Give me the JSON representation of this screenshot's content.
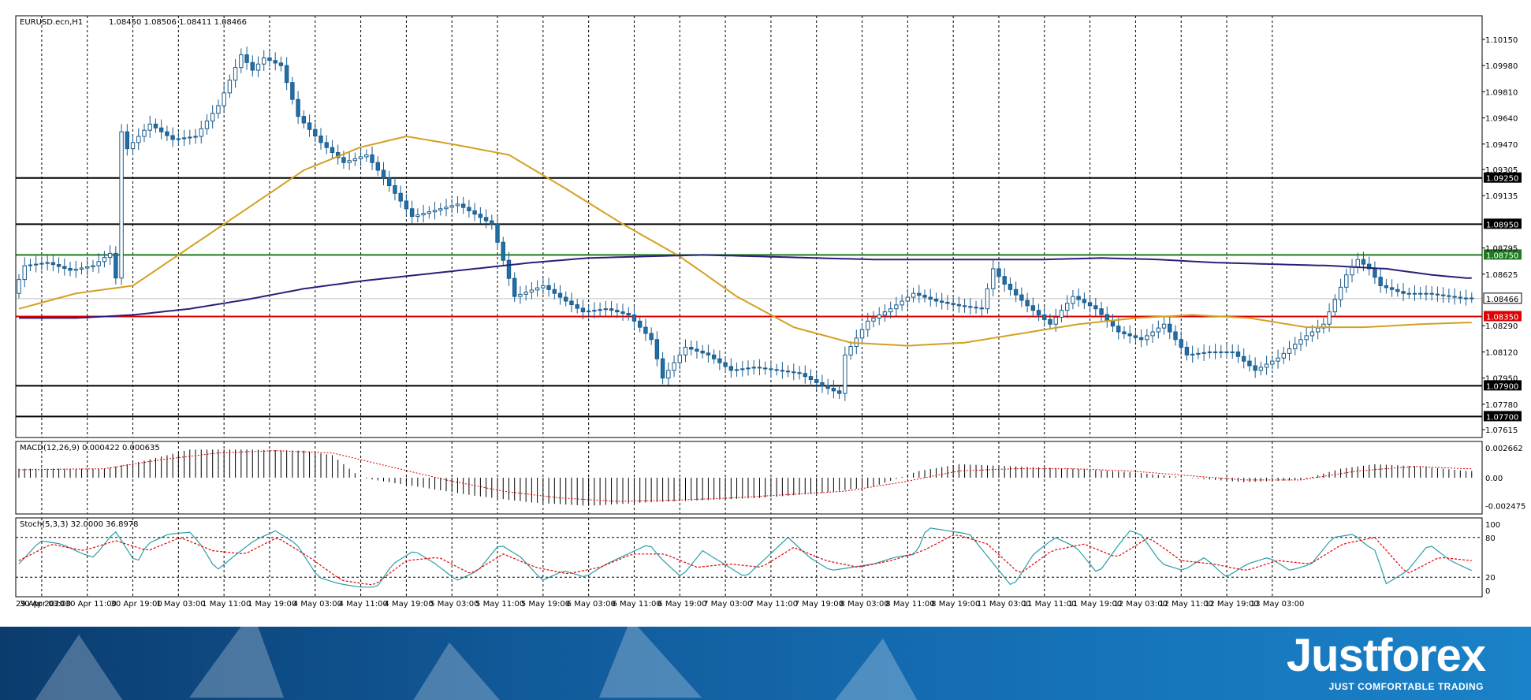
{
  "chart_data": [
    {
      "type": "candlestick",
      "title": "EURUSD.ecn,H1",
      "ohlc_header": "1.08450 1.08506 1.08411 1.08466",
      "ylim": [
        1.07615,
        1.1015
      ],
      "y_ticks": [
        "1.10150",
        "1.09980",
        "1.09810",
        "1.09640",
        "1.09470",
        "1.09305",
        "1.09135",
        "1.08795",
        "1.08625",
        "1.08290",
        "1.08120",
        "1.07950",
        "1.07780",
        "1.07615"
      ],
      "x_ticks": [
        "29 Apr 2020",
        "30 Apr 03:00",
        "30 Apr 11:00",
        "30 Apr 19:00",
        "1 May 03:00",
        "1 May 11:00",
        "1 May 19:00",
        "4 May 03:00",
        "4 May 11:00",
        "4 May 19:00",
        "5 May 03:00",
        "5 May 11:00",
        "5 May 19:00",
        "6 May 03:00",
        "6 May 11:00",
        "6 May 19:00",
        "7 May 03:00",
        "7 May 11:00",
        "7 May 19:00",
        "8 May 03:00",
        "8 May 11:00",
        "8 May 19:00",
        "11 May 03:00",
        "11 May 11:00",
        "11 May 19:00",
        "12 May 03:00",
        "12 May 11:00",
        "12 May 19:00",
        "13 May 03:00"
      ],
      "close_anchors": [
        [
          0,
          1.085
        ],
        [
          2,
          1.0868
        ],
        [
          6,
          1.087
        ],
        [
          10,
          1.0865
        ],
        [
          14,
          1.0868
        ],
        [
          17,
          1.0876
        ],
        [
          18,
          1.086
        ],
        [
          19,
          1.0955
        ],
        [
          20,
          1.0944
        ],
        [
          24,
          1.096
        ],
        [
          28,
          1.095
        ],
        [
          32,
          1.0952
        ],
        [
          36,
          1.0972
        ],
        [
          40,
          1.1005
        ],
        [
          42,
          1.0995
        ],
        [
          44,
          1.1003
        ],
        [
          47,
          1.0998
        ],
        [
          50,
          1.0965
        ],
        [
          54,
          1.0948
        ],
        [
          58,
          1.0935
        ],
        [
          62,
          1.094
        ],
        [
          66,
          1.092
        ],
        [
          70,
          1.09
        ],
        [
          74,
          1.0904
        ],
        [
          78,
          1.0908
        ],
        [
          84,
          1.0895
        ],
        [
          88,
          1.0848
        ],
        [
          93,
          1.0855
        ],
        [
          97,
          1.0845
        ],
        [
          100,
          1.0838
        ],
        [
          104,
          1.084
        ],
        [
          108,
          1.0836
        ],
        [
          112,
          1.082
        ],
        [
          114,
          1.0795
        ],
        [
          118,
          1.0815
        ],
        [
          122,
          1.081
        ],
        [
          126,
          1.08
        ],
        [
          130,
          1.0802
        ],
        [
          134,
          1.08
        ],
        [
          138,
          1.0798
        ],
        [
          142,
          1.079
        ],
        [
          145,
          1.0785
        ],
        [
          146,
          1.081
        ],
        [
          150,
          1.0832
        ],
        [
          154,
          1.084
        ],
        [
          158,
          1.085
        ],
        [
          162,
          1.0845
        ],
        [
          166,
          1.0842
        ],
        [
          170,
          1.084
        ],
        [
          172,
          1.0866
        ],
        [
          174,
          1.0856
        ],
        [
          178,
          1.0842
        ],
        [
          182,
          1.083
        ],
        [
          186,
          1.0848
        ],
        [
          190,
          1.084
        ],
        [
          194,
          1.0825
        ],
        [
          198,
          1.082
        ],
        [
          202,
          1.083
        ],
        [
          206,
          1.081
        ],
        [
          210,
          1.0812
        ],
        [
          214,
          1.0812
        ],
        [
          218,
          1.08
        ],
        [
          222,
          1.0808
        ],
        [
          226,
          1.082
        ],
        [
          230,
          1.083
        ],
        [
          234,
          1.0862
        ],
        [
          236,
          1.0872
        ],
        [
          238,
          1.0866
        ],
        [
          240,
          1.0855
        ],
        [
          244,
          1.085
        ],
        [
          248,
          1.085
        ],
        [
          252,
          1.0848
        ],
        [
          254,
          1.0847
        ]
      ],
      "levels": [
        {
          "price": 1.0925,
          "label": "1.09250",
          "color": "#000000"
        },
        {
          "price": 1.0895,
          "label": "1.08950",
          "color": "#000000"
        },
        {
          "price": 1.0875,
          "label": "1.08750",
          "color": "#1e7a1e"
        },
        {
          "price": 1.08466,
          "label": "1.08466",
          "color": "#c0c0c0"
        },
        {
          "price": 1.0835,
          "label": "1.08350",
          "color": "#e00000"
        },
        {
          "price": 1.079,
          "label": "1.07900",
          "color": "#000000"
        },
        {
          "price": 1.077,
          "label": "1.07700",
          "color": "#000000"
        }
      ],
      "moving_averages": [
        {
          "color": "#d4a020",
          "values": [
            [
              0,
              1.084
            ],
            [
              10,
              1.085
            ],
            [
              20,
              1.0855
            ],
            [
              30,
              1.088
            ],
            [
              40,
              1.0905
            ],
            [
              50,
              1.093
            ],
            [
              60,
              1.0945
            ],
            [
              68,
              1.0952
            ],
            [
              76,
              1.0947
            ],
            [
              86,
              1.094
            ],
            [
              96,
              1.0918
            ],
            [
              106,
              1.0895
            ],
            [
              116,
              1.0874
            ],
            [
              126,
              1.0848
            ],
            [
              136,
              1.0828
            ],
            [
              146,
              1.0818
            ],
            [
              156,
              1.0816
            ],
            [
              166,
              1.0818
            ],
            [
              176,
              1.0824
            ],
            [
              186,
              1.083
            ],
            [
              196,
              1.0834
            ],
            [
              206,
              1.0836
            ],
            [
              216,
              1.0834
            ],
            [
              226,
              1.0828
            ],
            [
              236,
              1.0828
            ],
            [
              246,
              1.083
            ],
            [
              254,
              1.0831
            ]
          ]
        },
        {
          "color": "#2a1f7a",
          "values": [
            [
              0,
              1.0834
            ],
            [
              10,
              1.0834
            ],
            [
              20,
              1.0836
            ],
            [
              30,
              1.084
            ],
            [
              40,
              1.0846
            ],
            [
              50,
              1.0853
            ],
            [
              60,
              1.0858
            ],
            [
              70,
              1.0862
            ],
            [
              80,
              1.0866
            ],
            [
              90,
              1.087
            ],
            [
              100,
              1.0873
            ],
            [
              110,
              1.0874
            ],
            [
              120,
              1.0875
            ],
            [
              130,
              1.0874
            ],
            [
              140,
              1.0873
            ],
            [
              150,
              1.0872
            ],
            [
              160,
              1.0872
            ],
            [
              170,
              1.0872
            ],
            [
              180,
              1.0872
            ],
            [
              190,
              1.0873
            ],
            [
              200,
              1.0872
            ],
            [
              210,
              1.087
            ],
            [
              220,
              1.0869
            ],
            [
              230,
              1.0868
            ],
            [
              240,
              1.0866
            ],
            [
              248,
              1.0862
            ],
            [
              254,
              1.086
            ]
          ]
        }
      ]
    },
    {
      "type": "histogram",
      "title": "MACD(12,26,9) 0.000422 0.000635",
      "ylim": [
        -0.0028,
        0.0028
      ],
      "y_ticks": [
        "0.002662",
        "0.00",
        "-0.002475"
      ],
      "histogram_anchors": [
        [
          0,
          0.0008
        ],
        [
          15,
          0.0008
        ],
        [
          22,
          0.0015
        ],
        [
          30,
          0.0025
        ],
        [
          40,
          0.0025
        ],
        [
          50,
          0.0024
        ],
        [
          55,
          0.002
        ],
        [
          60,
          0.0
        ],
        [
          70,
          -0.0008
        ],
        [
          80,
          -0.0016
        ],
        [
          90,
          -0.0022
        ],
        [
          100,
          -0.0025
        ],
        [
          110,
          -0.0022
        ],
        [
          120,
          -0.002
        ],
        [
          130,
          -0.0018
        ],
        [
          140,
          -0.0014
        ],
        [
          150,
          -0.0008
        ],
        [
          158,
          0.0006
        ],
        [
          165,
          0.0012
        ],
        [
          175,
          0.001
        ],
        [
          185,
          0.0008
        ],
        [
          195,
          0.0005
        ],
        [
          205,
          0.0
        ],
        [
          215,
          -0.0004
        ],
        [
          225,
          -0.0002
        ],
        [
          232,
          0.0008
        ],
        [
          238,
          0.0012
        ],
        [
          246,
          0.001
        ],
        [
          254,
          0.0006
        ]
      ],
      "signal_anchors": [
        [
          0,
          0.0007
        ],
        [
          15,
          0.0008
        ],
        [
          25,
          0.0016
        ],
        [
          35,
          0.0022
        ],
        [
          45,
          0.0024
        ],
        [
          55,
          0.0022
        ],
        [
          65,
          0.001
        ],
        [
          75,
          -0.0002
        ],
        [
          85,
          -0.0012
        ],
        [
          95,
          -0.0018
        ],
        [
          105,
          -0.0021
        ],
        [
          115,
          -0.002
        ],
        [
          125,
          -0.0018
        ],
        [
          135,
          -0.0015
        ],
        [
          145,
          -0.0012
        ],
        [
          155,
          -0.0004
        ],
        [
          165,
          0.0006
        ],
        [
          175,
          0.0008
        ],
        [
          185,
          0.0008
        ],
        [
          195,
          0.0006
        ],
        [
          205,
          0.0002
        ],
        [
          215,
          -0.0002
        ],
        [
          225,
          -0.0002
        ],
        [
          235,
          0.0006
        ],
        [
          245,
          0.001
        ],
        [
          254,
          0.0008
        ]
      ]
    },
    {
      "type": "line",
      "title": "Stoch(5,3,3) 32.0000 36.8978",
      "ylim": [
        0,
        100
      ],
      "y_ticks": [
        "100",
        "80",
        "20",
        "0"
      ],
      "main_line_color": "#2aa0a8",
      "signal_line_color": "#e00000",
      "main_anchors": [
        [
          0,
          40
        ],
        [
          4,
          75
        ],
        [
          8,
          70
        ],
        [
          12,
          55
        ],
        [
          14,
          50
        ],
        [
          18,
          90
        ],
        [
          22,
          40
        ],
        [
          24,
          70
        ],
        [
          28,
          85
        ],
        [
          32,
          88
        ],
        [
          34,
          70
        ],
        [
          37,
          30
        ],
        [
          40,
          50
        ],
        [
          44,
          75
        ],
        [
          48,
          90
        ],
        [
          52,
          70
        ],
        [
          56,
          20
        ],
        [
          60,
          10
        ],
        [
          64,
          5
        ],
        [
          67,
          5
        ],
        [
          70,
          40
        ],
        [
          74,
          60
        ],
        [
          78,
          40
        ],
        [
          82,
          15
        ],
        [
          86,
          30
        ],
        [
          90,
          70
        ],
        [
          94,
          50
        ],
        [
          98,
          15
        ],
        [
          102,
          30
        ],
        [
          106,
          20
        ],
        [
          110,
          40
        ],
        [
          114,
          55
        ],
        [
          118,
          70
        ],
        [
          120,
          50
        ],
        [
          124,
          20
        ],
        [
          128,
          60
        ],
        [
          132,
          40
        ],
        [
          136,
          20
        ],
        [
          140,
          50
        ],
        [
          144,
          80
        ],
        [
          148,
          50
        ],
        [
          152,
          30
        ],
        [
          156,
          35
        ],
        [
          160,
          40
        ],
        [
          164,
          50
        ],
        [
          168,
          55
        ],
        [
          170,
          95
        ],
        [
          174,
          90
        ],
        [
          178,
          85
        ],
        [
          182,
          45
        ],
        [
          186,
          5
        ],
        [
          190,
          55
        ],
        [
          194,
          80
        ],
        [
          198,
          65
        ],
        [
          202,
          25
        ],
        [
          206,
          70
        ],
        [
          208,
          90
        ],
        [
          210,
          85
        ],
        [
          214,
          40
        ],
        [
          218,
          30
        ],
        [
          222,
          50
        ],
        [
          226,
          20
        ],
        [
          230,
          40
        ],
        [
          234,
          50
        ],
        [
          238,
          30
        ],
        [
          242,
          40
        ],
        [
          246,
          80
        ],
        [
          250,
          85
        ],
        [
          252,
          70
        ],
        [
          254,
          60
        ],
        [
          256,
          10
        ],
        [
          260,
          30
        ],
        [
          264,
          70
        ],
        [
          268,
          45
        ],
        [
          272,
          30
        ]
      ],
      "signal_anchors": [
        [
          0,
          45
        ],
        [
          6,
          70
        ],
        [
          12,
          60
        ],
        [
          18,
          75
        ],
        [
          24,
          60
        ],
        [
          30,
          80
        ],
        [
          36,
          60
        ],
        [
          42,
          55
        ],
        [
          48,
          80
        ],
        [
          54,
          50
        ],
        [
          60,
          15
        ],
        [
          66,
          8
        ],
        [
          72,
          45
        ],
        [
          78,
          50
        ],
        [
          84,
          25
        ],
        [
          90,
          55
        ],
        [
          96,
          35
        ],
        [
          102,
          25
        ],
        [
          108,
          35
        ],
        [
          114,
          55
        ],
        [
          120,
          55
        ],
        [
          126,
          35
        ],
        [
          132,
          40
        ],
        [
          138,
          35
        ],
        [
          144,
          65
        ],
        [
          150,
          45
        ],
        [
          156,
          35
        ],
        [
          162,
          45
        ],
        [
          168,
          60
        ],
        [
          174,
          85
        ],
        [
          180,
          70
        ],
        [
          186,
          25
        ],
        [
          192,
          60
        ],
        [
          198,
          70
        ],
        [
          204,
          50
        ],
        [
          210,
          80
        ],
        [
          216,
          45
        ],
        [
          222,
          40
        ],
        [
          228,
          30
        ],
        [
          234,
          45
        ],
        [
          240,
          40
        ],
        [
          246,
          70
        ],
        [
          252,
          80
        ],
        [
          258,
          25
        ],
        [
          264,
          50
        ],
        [
          270,
          45
        ]
      ]
    }
  ],
  "brand": {
    "name": "Justforex",
    "tagline": "JUST COMFORTABLE TRADING"
  }
}
